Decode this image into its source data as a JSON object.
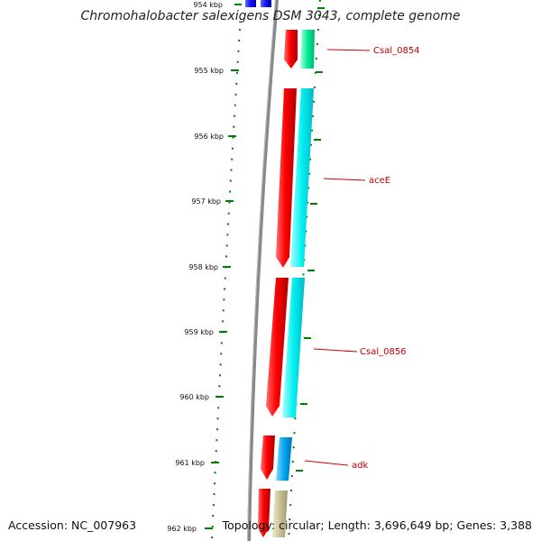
{
  "title": "Chromohalobacter salexigens DSM 3043, complete genome",
  "accession": "Accession: NC_007963",
  "topology": "Topology: circular; Length: 3,696,649 bp; Genes: 3,388",
  "scale": {
    "unit": "kbp",
    "ticks": [
      "954 kbp",
      "955 kbp",
      "956 kbp",
      "957 kbp",
      "958 kbp",
      "959 kbp",
      "960 kbp",
      "961 kbp",
      "962 kbp"
    ]
  },
  "genes": [
    {
      "name": "Csal_0854",
      "color": "#00ee99"
    },
    {
      "name": "aceE",
      "color": "#00f0f0"
    },
    {
      "name": "Csal_0856",
      "color": "#00f0f0"
    },
    {
      "name": "adk",
      "color": "#00a8f0"
    }
  ],
  "colors": {
    "cds": "#ff0000",
    "tick": "#008000",
    "label": "#c00000",
    "backbone": "#888888",
    "blast_top": "#2222ee",
    "last_feature": "#c8c096"
  }
}
